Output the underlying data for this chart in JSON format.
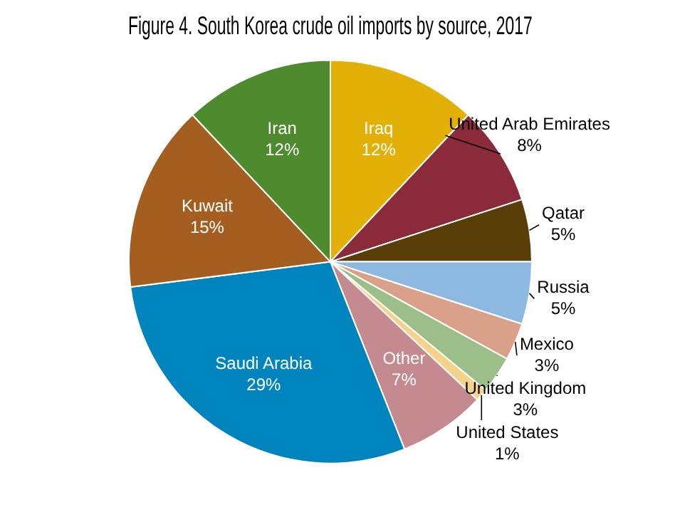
{
  "chart_data": {
    "type": "pie",
    "title": "Figure 4. South Korea crude oil imports by source, 2017",
    "categories": [
      "Iraq",
      "United Arab Emirates",
      "Qatar",
      "Russia",
      "Mexico",
      "United Kingdom",
      "United States",
      "Other",
      "Saudi Arabia",
      "Kuwait",
      "Iran"
    ],
    "values": [
      12,
      8,
      5,
      5,
      3,
      3,
      1,
      7,
      29,
      15,
      12
    ],
    "value_labels": [
      "12%",
      "8%",
      "5%",
      "5%",
      "3%",
      "3%",
      "1%",
      "7%",
      "29%",
      "15%",
      "12%"
    ],
    "colors": [
      "#e2b007",
      "#8b2a3a",
      "#5a3e08",
      "#8db8e0",
      "#d9a08a",
      "#9cbf8a",
      "#f5d28a",
      "#c48a8f",
      "#0084bd",
      "#a45f20",
      "#4e8a2e"
    ]
  }
}
